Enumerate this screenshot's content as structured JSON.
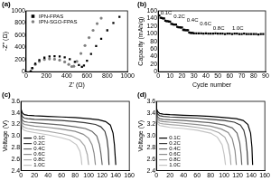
{
  "chart_data": [
    {
      "type": "scatter",
      "title": "(a)",
      "x_label": "Z' (Ω)",
      "y_label": "-Z'' (Ω)",
      "xlim": [
        0,
        1000
      ],
      "xticks": [
        0,
        200,
        400,
        600,
        800,
        1000
      ],
      "ylim": [
        0,
        1000
      ],
      "yticks": [
        0,
        200,
        400,
        600,
        800,
        1000
      ],
      "grid": false,
      "legend": "upper left",
      "series": [
        {
          "name": "IPN-FPAS",
          "color": "#000000",
          "marker": "square",
          "x": [
            45,
            60,
            90,
            130,
            180,
            230,
            280,
            330,
            380,
            430,
            480,
            520,
            550,
            570,
            600,
            640,
            690,
            740,
            800,
            860,
            920
          ],
          "values": [
            5,
            60,
            130,
            190,
            230,
            250,
            255,
            250,
            235,
            205,
            160,
            110,
            80,
            100,
            180,
            290,
            420,
            540,
            680,
            800,
            900
          ]
        },
        {
          "name": "IPN-SGO-FPAS",
          "color": "#808080",
          "marker": "circle",
          "x": [
            45,
            60,
            90,
            130,
            180,
            230,
            280,
            330,
            380,
            420,
            450,
            470,
            500,
            540,
            580,
            620,
            660,
            700,
            740
          ],
          "values": [
            5,
            55,
            120,
            170,
            200,
            210,
            205,
            190,
            160,
            120,
            85,
            90,
            170,
            300,
            430,
            560,
            680,
            790,
            880
          ]
        }
      ]
    },
    {
      "type": "scatter",
      "title": "(b)",
      "x_label": "Cycle number",
      "y_label": "Capacity (mAh/g)",
      "xlim": [
        0,
        90
      ],
      "xticks": [
        0,
        10,
        20,
        30,
        40,
        50,
        60,
        70,
        80,
        90
      ],
      "ylim": [
        0,
        160
      ],
      "yticks": [
        0,
        20,
        40,
        60,
        80,
        100,
        120,
        140,
        160
      ],
      "grid": false,
      "color": "#000000",
      "marker": "square",
      "x": [
        1,
        2,
        3,
        4,
        5,
        6,
        7,
        8,
        9,
        10,
        11,
        12,
        13,
        14,
        15,
        16,
        17,
        18,
        19,
        20,
        21,
        22,
        23,
        24,
        25,
        26,
        27,
        28,
        29,
        30,
        32,
        34,
        36,
        38,
        40,
        42,
        44,
        46,
        48,
        50,
        52,
        54,
        56,
        58,
        60,
        62,
        64,
        66,
        68,
        70,
        72,
        74,
        76,
        78,
        80,
        82,
        84,
        86,
        88
      ],
      "values": [
        148,
        142,
        141,
        140,
        140,
        134,
        133,
        133,
        132,
        132,
        126,
        125,
        124,
        124,
        124,
        118,
        117,
        117,
        116,
        116,
        110,
        110,
        109,
        109,
        109,
        103,
        102,
        102,
        102,
        101,
        101,
        101,
        101,
        100,
        101,
        100,
        100,
        100,
        101,
        100,
        100,
        100,
        99,
        100,
        100,
        99,
        100,
        100,
        99,
        99,
        100,
        99,
        99,
        99,
        99,
        99,
        98,
        99,
        99
      ],
      "annotations": [
        {
          "text": "0.1C",
          "x": 2,
          "y": 155
        },
        {
          "text": "0.2C",
          "x": 13,
          "y": 145
        },
        {
          "text": "0.4C",
          "x": 24,
          "y": 135
        },
        {
          "text": "0.6C",
          "x": 35,
          "y": 125
        },
        {
          "text": "0.8C",
          "x": 46,
          "y": 115
        },
        {
          "text": "1.0C",
          "x": 62,
          "y": 113
        }
      ]
    },
    {
      "type": "line",
      "title": "(c)",
      "y_label": "Voltage (V)",
      "xlim": [
        0,
        160
      ],
      "xticks": [
        0,
        20,
        40,
        60,
        80,
        100,
        120,
        140,
        160
      ],
      "ylim": [
        2.4,
        3.6
      ],
      "yticks": [
        2.4,
        2.6,
        2.8,
        {
          "value": 3,
          "label": "3.0"
        },
        3.2,
        3.4,
        3.6
      ],
      "grid": false,
      "legend": "lower left",
      "series": [
        {
          "name": "0.1C",
          "color": "#000000",
          "x": [
            0,
            2,
            5,
            10,
            20,
            40,
            60,
            80,
            100,
            115,
            125,
            132,
            136,
            138,
            140
          ],
          "values": [
            3.47,
            3.4,
            3.37,
            3.36,
            3.35,
            3.34,
            3.33,
            3.32,
            3.3,
            3.28,
            3.25,
            3.19,
            3.05,
            2.85,
            2.5
          ]
        },
        {
          "name": "0.2C",
          "color": "#3a3a3a",
          "x": [
            0,
            2,
            5,
            10,
            20,
            40,
            60,
            80,
            95,
            110,
            118,
            124,
            127,
            129,
            130
          ],
          "values": [
            3.42,
            3.34,
            3.31,
            3.3,
            3.29,
            3.28,
            3.27,
            3.25,
            3.23,
            3.2,
            3.16,
            3.08,
            2.95,
            2.75,
            2.5
          ]
        },
        {
          "name": "0.4C",
          "color": "#666666",
          "x": [
            0,
            2,
            5,
            10,
            20,
            40,
            60,
            80,
            95,
            105,
            112,
            116,
            118,
            120
          ],
          "values": [
            3.38,
            3.28,
            3.25,
            3.24,
            3.23,
            3.21,
            3.19,
            3.16,
            3.13,
            3.08,
            3.0,
            2.85,
            2.7,
            2.5
          ]
        },
        {
          "name": "0.6C",
          "color": "#8c8c8c",
          "x": [
            0,
            2,
            5,
            10,
            20,
            40,
            60,
            80,
            92,
            100,
            105,
            108,
            110
          ],
          "values": [
            3.34,
            3.23,
            3.2,
            3.19,
            3.17,
            3.15,
            3.12,
            3.08,
            3.03,
            2.96,
            2.85,
            2.7,
            2.5
          ]
        },
        {
          "name": "0.8C",
          "color": "#a8a8a8",
          "x": [
            0,
            2,
            5,
            10,
            20,
            40,
            60,
            75,
            87,
            94,
            98,
            100
          ],
          "values": [
            3.3,
            3.18,
            3.15,
            3.13,
            3.11,
            3.08,
            3.04,
            3.0,
            2.93,
            2.83,
            2.68,
            2.5
          ]
        },
        {
          "name": "1.0C",
          "color": "#c4c4c4",
          "x": [
            0,
            2,
            5,
            10,
            20,
            40,
            60,
            72,
            82,
            87,
            89,
            90
          ],
          "values": [
            3.26,
            3.13,
            3.1,
            3.08,
            3.06,
            3.02,
            2.97,
            2.93,
            2.85,
            2.74,
            2.62,
            2.5
          ]
        }
      ]
    },
    {
      "type": "line",
      "title": "(d)",
      "y_label": "Voltage (V)",
      "xlim": [
        0,
        160
      ],
      "xticks": [
        0,
        20,
        40,
        60,
        80,
        100,
        120,
        140,
        160
      ],
      "ylim": [
        2.4,
        3.6
      ],
      "yticks": [
        2.4,
        2.6,
        2.8,
        {
          "value": 3,
          "label": "3.0"
        },
        3.2,
        3.4,
        3.6
      ],
      "grid": false,
      "legend": "lower left",
      "series": [
        {
          "name": "0.1C",
          "color": "#000000",
          "x": [
            0,
            2,
            5,
            10,
            20,
            40,
            60,
            80,
            100,
            118,
            128,
            135,
            139,
            141,
            142
          ],
          "values": [
            3.48,
            3.42,
            3.39,
            3.38,
            3.37,
            3.36,
            3.35,
            3.34,
            3.32,
            3.3,
            3.27,
            3.2,
            3.05,
            2.8,
            2.5
          ]
        },
        {
          "name": "0.2C",
          "color": "#3a3a3a",
          "x": [
            0,
            2,
            5,
            10,
            20,
            40,
            60,
            80,
            100,
            115,
            124,
            129,
            132,
            134,
            135
          ],
          "values": [
            3.45,
            3.38,
            3.35,
            3.34,
            3.33,
            3.32,
            3.31,
            3.29,
            3.27,
            3.24,
            3.19,
            3.1,
            2.95,
            2.72,
            2.5
          ]
        },
        {
          "name": "0.4C",
          "color": "#666666",
          "x": [
            0,
            2,
            5,
            10,
            20,
            40,
            60,
            80,
            100,
            112,
            119,
            123,
            125,
            126
          ],
          "values": [
            3.42,
            3.33,
            3.3,
            3.29,
            3.28,
            3.27,
            3.25,
            3.23,
            3.19,
            3.14,
            3.05,
            2.88,
            2.68,
            2.5
          ]
        },
        {
          "name": "0.6C",
          "color": "#8c8c8c",
          "x": [
            0,
            2,
            5,
            10,
            20,
            40,
            60,
            80,
            96,
            106,
            112,
            116,
            118
          ],
          "values": [
            3.39,
            3.29,
            3.26,
            3.25,
            3.24,
            3.22,
            3.2,
            3.17,
            3.12,
            3.06,
            2.95,
            2.75,
            2.5
          ]
        },
        {
          "name": "0.8C",
          "color": "#a8a8a8",
          "x": [
            0,
            2,
            5,
            10,
            20,
            40,
            60,
            80,
            92,
            101,
            106,
            109,
            110
          ],
          "values": [
            3.36,
            3.25,
            3.22,
            3.21,
            3.2,
            3.18,
            3.15,
            3.11,
            3.06,
            2.98,
            2.85,
            2.65,
            2.5
          ]
        },
        {
          "name": "1.0C",
          "color": "#c4c4c4",
          "x": [
            0,
            2,
            5,
            10,
            20,
            40,
            60,
            80,
            90,
            97,
            100,
            102
          ],
          "values": [
            3.33,
            3.21,
            3.18,
            3.17,
            3.15,
            3.13,
            3.1,
            3.05,
            2.98,
            2.85,
            2.68,
            2.5
          ]
        }
      ]
    }
  ]
}
